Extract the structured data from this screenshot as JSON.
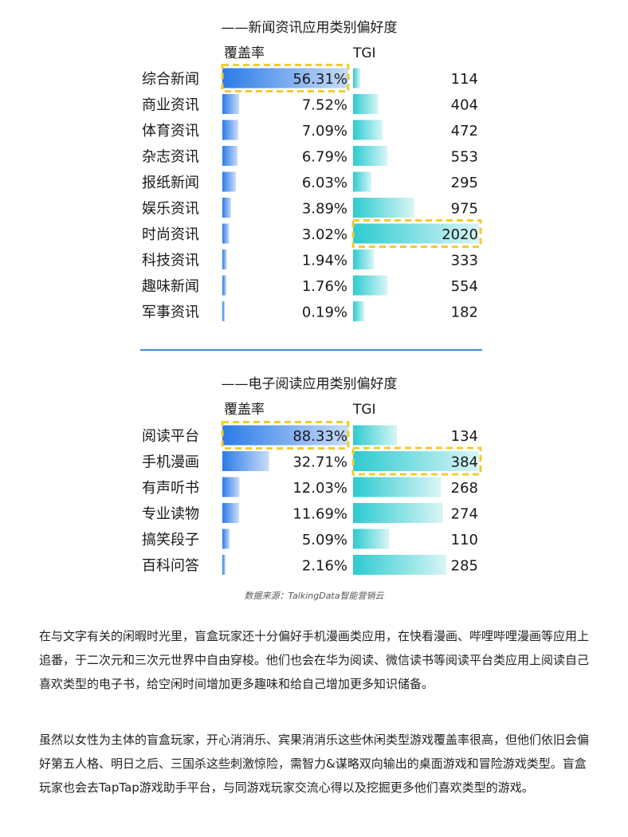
{
  "chart_data": [
    {
      "type": "bar",
      "title": "——新闻资讯应用类别偏好度",
      "columns": [
        "覆盖率",
        "TGI"
      ],
      "categories": [
        "综合新闻",
        "商业资讯",
        "体育资讯",
        "杂志资讯",
        "报纸新闻",
        "娱乐资讯",
        "时尚资讯",
        "科技资讯",
        "趣味新闻",
        "军事资讯"
      ],
      "series": [
        {
          "name": "覆盖率",
          "values": [
            56.31,
            7.52,
            7.09,
            6.79,
            6.03,
            3.89,
            3.02,
            1.94,
            1.76,
            0.19
          ],
          "labels": [
            "56.31%",
            "7.52%",
            "7.09%",
            "6.79%",
            "6.03%",
            "3.89%",
            "3.02%",
            "1.94%",
            "1.76%",
            "0.19%"
          ]
        },
        {
          "name": "TGI",
          "values": [
            114,
            404,
            472,
            553,
            295,
            975,
            2020,
            333,
            554,
            182
          ],
          "labels": [
            "114",
            "404",
            "472",
            "553",
            "295",
            "975",
            "2020",
            "333",
            "554",
            "182"
          ]
        }
      ],
      "highlights": {
        "覆盖率": 0,
        "TGI": 6
      }
    },
    {
      "type": "bar",
      "title": "——电子阅读应用类别偏好度",
      "columns": [
        "覆盖率",
        "TGI"
      ],
      "categories": [
        "阅读平台",
        "手机漫画",
        "有声听书",
        "专业读物",
        "搞笑段子",
        "百科问答"
      ],
      "series": [
        {
          "name": "覆盖率",
          "values": [
            88.33,
            32.71,
            12.03,
            11.69,
            5.09,
            2.16
          ],
          "labels": [
            "88.33%",
            "32.71%",
            "12.03%",
            "11.69%",
            "5.09%",
            "2.16%"
          ]
        },
        {
          "name": "TGI",
          "values": [
            134,
            384,
            268,
            274,
            110,
            285
          ],
          "labels": [
            "134",
            "384",
            "268",
            "274",
            "110",
            "285"
          ]
        }
      ],
      "highlights": {
        "覆盖率": 0,
        "TGI": 1
      }
    }
  ],
  "source": "数据来源：TalkingData智能营销云",
  "paragraphs": [
    "在与文字有关的闲暇时光里，盲盒玩家还十分偏好手机漫画类应用，在快看漫画、哔哩哔哩漫画等应用上追番，于二次元和三次元世界中自由穿梭。他们也会在华为阅读、微信读书等阅读平台类应用上阅读自己喜欢类型的电子书，给空闲时间增加更多趣味和给自己增加更多知识储备。",
    "虽然以女性为主体的盲盒玩家，开心消消乐、宾果消消乐这些休闲类型游戏覆盖率很高，但他们依旧会偏好第五人格、明日之后、三国杀这些刺激惊险，需智力&谋略双向输出的桌面游戏和冒险游戏类型。盲盒玩家也会去TapTap游戏助手平台，与同游戏玩家交流心得以及挖掘更多他们喜欢类型的游戏。"
  ],
  "colors": {
    "coverage_bar": "#2f80ea",
    "tgi_bar": "#33d1d4",
    "highlight_border": "#f2cc2c",
    "divider": "#3b8fe0",
    "source_text": "#555555"
  }
}
